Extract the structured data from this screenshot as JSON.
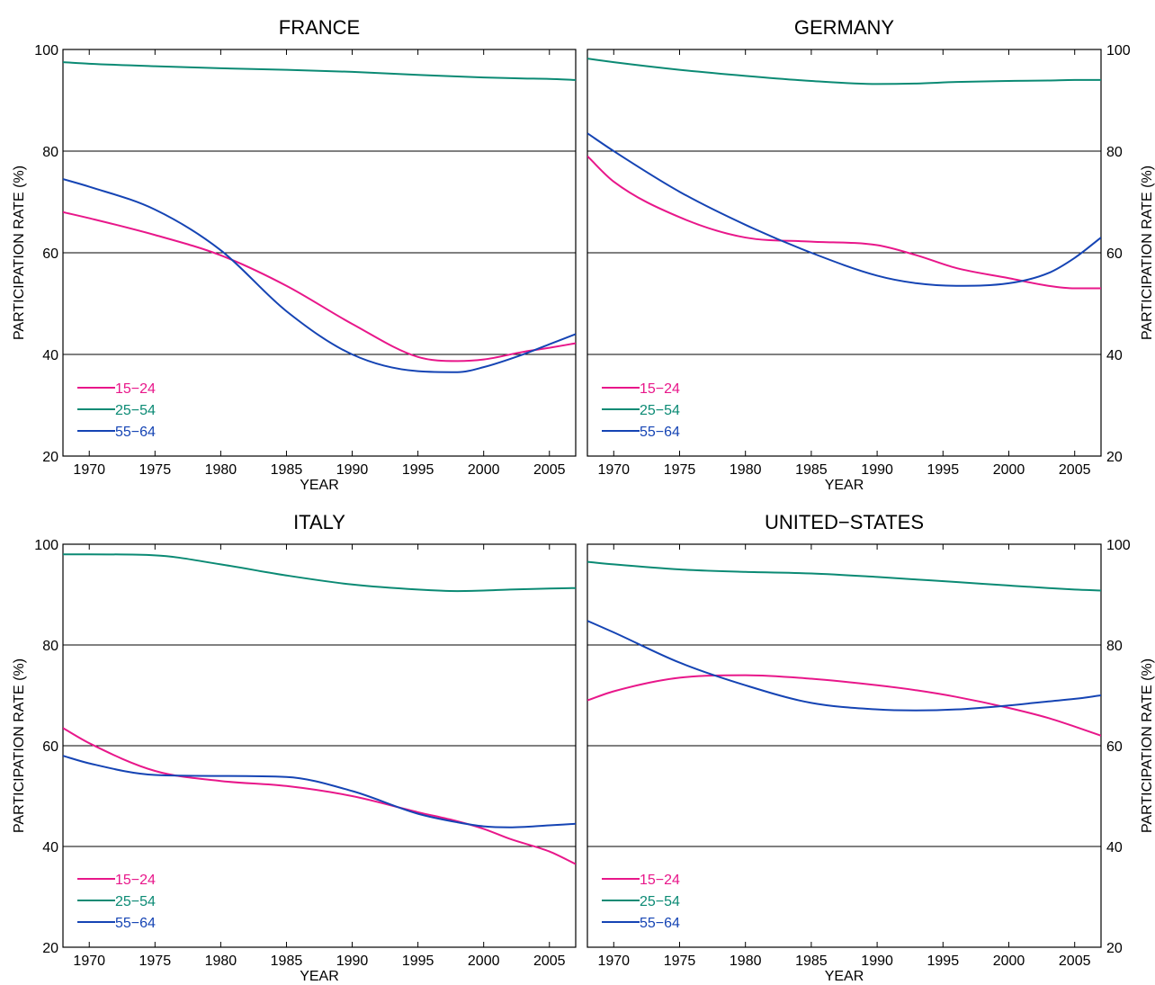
{
  "chart_data": [
    {
      "type": "line",
      "title": "FRANCE",
      "xlabel": "YEAR",
      "ylabel": "PARTICIPATION RATE (%)",
      "ylabel_side": "left",
      "xlim": [
        1968,
        2007
      ],
      "ylim": [
        20,
        100
      ],
      "xticks": [
        1970,
        1975,
        1980,
        1985,
        1990,
        1995,
        2000,
        2005
      ],
      "yticks": [
        20,
        40,
        60,
        80,
        100
      ],
      "grid_y": [
        40,
        60,
        80
      ],
      "legend_position": "bottom-left",
      "x": [
        1968,
        1970,
        1975,
        1980,
        1985,
        1990,
        1995,
        1998,
        2000,
        2003,
        2005,
        2007
      ],
      "series": [
        {
          "name": "15−24",
          "color": "#e8178a",
          "values": [
            68.0,
            66.8,
            63.5,
            59.5,
            53.5,
            46.0,
            39.5,
            38.7,
            39.0,
            40.5,
            41.3,
            42.2
          ]
        },
        {
          "name": "25−54",
          "color": "#0b8a74",
          "values": [
            97.5,
            97.2,
            96.7,
            96.3,
            96.0,
            95.6,
            95.0,
            94.7,
            94.5,
            94.3,
            94.2,
            94.0
          ]
        },
        {
          "name": "55−64",
          "color": "#1544b4",
          "values": [
            74.5,
            73.0,
            68.5,
            60.5,
            48.5,
            40.0,
            36.7,
            36.5,
            37.5,
            40.0,
            42.0,
            44.0
          ]
        }
      ]
    },
    {
      "type": "line",
      "title": "GERMANY",
      "xlabel": "YEAR",
      "ylabel": "PARTICIPATION RATE (%)",
      "ylabel_side": "right",
      "xlim": [
        1968,
        2007
      ],
      "ylim": [
        20,
        100
      ],
      "xticks": [
        1970,
        1975,
        1980,
        1985,
        1990,
        1995,
        2000,
        2005
      ],
      "yticks": [
        20,
        40,
        60,
        80,
        100
      ],
      "grid_y": [
        40,
        60,
        80
      ],
      "legend_position": "bottom-left",
      "x": [
        1968,
        1970,
        1975,
        1980,
        1985,
        1990,
        1993,
        1996,
        2000,
        2003,
        2005,
        2007
      ],
      "series": [
        {
          "name": "15−24",
          "color": "#e8178a",
          "values": [
            79.0,
            74.0,
            67.0,
            63.0,
            62.2,
            61.5,
            59.5,
            57.0,
            55.0,
            53.5,
            53.0,
            53.0
          ]
        },
        {
          "name": "25−54",
          "color": "#0b8a74",
          "values": [
            98.2,
            97.5,
            96.0,
            94.8,
            93.8,
            93.2,
            93.3,
            93.6,
            93.8,
            93.9,
            94.0,
            94.0
          ]
        },
        {
          "name": "55−64",
          "color": "#1544b4",
          "values": [
            83.5,
            80.0,
            72.0,
            65.5,
            60.0,
            55.5,
            54.0,
            53.5,
            54.0,
            56.0,
            59.0,
            63.0
          ]
        }
      ]
    },
    {
      "type": "line",
      "title": "ITALY",
      "xlabel": "YEAR",
      "ylabel": "PARTICIPATION RATE (%)",
      "ylabel_side": "left",
      "xlim": [
        1968,
        2007
      ],
      "ylim": [
        20,
        100
      ],
      "xticks": [
        1970,
        1975,
        1980,
        1985,
        1990,
        1995,
        2000,
        2005
      ],
      "yticks": [
        20,
        40,
        60,
        80,
        100
      ],
      "grid_y": [
        40,
        60,
        80
      ],
      "legend_position": "bottom-left",
      "x": [
        1968,
        1970,
        1975,
        1980,
        1985,
        1990,
        1995,
        1998,
        2000,
        2002,
        2005,
        2007
      ],
      "series": [
        {
          "name": "15−24",
          "color": "#e8178a",
          "values": [
            63.5,
            60.5,
            55.0,
            53.0,
            52.0,
            50.0,
            46.8,
            45.0,
            43.5,
            41.5,
            39.0,
            36.5
          ]
        },
        {
          "name": "25−54",
          "color": "#0b8a74",
          "values": [
            98.0,
            98.0,
            97.8,
            96.0,
            93.8,
            92.0,
            91.0,
            90.7,
            90.8,
            91.0,
            91.2,
            91.3
          ]
        },
        {
          "name": "55−64",
          "color": "#1544b4",
          "values": [
            58.0,
            56.5,
            54.2,
            54.0,
            53.8,
            51.0,
            46.5,
            44.8,
            44.0,
            43.8,
            44.2,
            44.5
          ]
        }
      ]
    },
    {
      "type": "line",
      "title": "UNITED−STATES",
      "xlabel": "YEAR",
      "ylabel": "PARTICIPATION RATE (%)",
      "ylabel_side": "right",
      "xlim": [
        1968,
        2007
      ],
      "ylim": [
        20,
        100
      ],
      "xticks": [
        1970,
        1975,
        1980,
        1985,
        1990,
        1995,
        2000,
        2005
      ],
      "yticks": [
        20,
        40,
        60,
        80,
        100
      ],
      "grid_y": [
        40,
        60,
        80
      ],
      "legend_position": "bottom-left",
      "x": [
        1968,
        1970,
        1975,
        1980,
        1985,
        1990,
        1993,
        1996,
        2000,
        2003,
        2005,
        2007
      ],
      "series": [
        {
          "name": "15−24",
          "color": "#e8178a",
          "values": [
            69.0,
            70.8,
            73.5,
            74.0,
            73.3,
            72.0,
            71.0,
            69.7,
            67.5,
            65.5,
            63.8,
            62.0
          ]
        },
        {
          "name": "25−54",
          "color": "#0b8a74",
          "values": [
            96.5,
            96.0,
            95.0,
            94.5,
            94.2,
            93.5,
            93.0,
            92.5,
            91.8,
            91.3,
            91.0,
            90.8
          ]
        },
        {
          "name": "55−64",
          "color": "#1544b4",
          "values": [
            84.8,
            82.5,
            76.5,
            72.0,
            68.5,
            67.2,
            67.0,
            67.2,
            68.0,
            68.8,
            69.3,
            70.0
          ]
        }
      ]
    }
  ]
}
